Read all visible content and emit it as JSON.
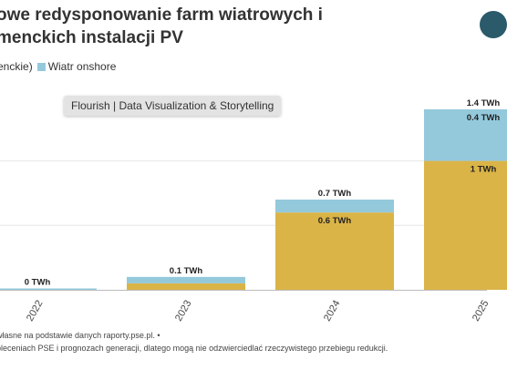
{
  "title": {
    "line1": "owe redysponowanie farm wiatrowych i",
    "line2": "menckich instalacji PV"
  },
  "legend": {
    "items": [
      {
        "label": "enckie)",
        "color": "#dbb447"
      },
      {
        "label": "Wiatr onshore",
        "color": "#94c9dc"
      }
    ]
  },
  "watermark": "Flourish | Data Visualization & Storytelling",
  "footer": {
    "line1": "własne na podstawie danych raporty.pse.pl. •",
    "line2": "bleceniach PSE i prognozach generacji, dlatego mogą nie odzwierciedlać rzeczywistego przebiegu redukcji."
  },
  "colors": {
    "pv": "#dbb447",
    "wind": "#94c9dc",
    "grid": "#e6e6e6",
    "axis": "#bbbbbb"
  },
  "chart_data": {
    "type": "bar",
    "stacked": true,
    "categories": [
      "2022",
      "2023",
      "2024",
      "2025"
    ],
    "series": [
      {
        "values": [
          0,
          0.05,
          0.6,
          1.0
        ]
      },
      {
        "name": "Wiatr onshore",
        "values": [
          0,
          0.05,
          0.1,
          0.4
        ]
      }
    ],
    "totals": [
      "0 TWh",
      "0.1 TWh",
      "0.7 TWh",
      "1.4 TWh"
    ],
    "segment_labels": [
      [
        "",
        "",
        "0.6 TWh",
        "1 TWh"
      ],
      [
        "",
        "",
        "",
        "0.4 TWh"
      ]
    ],
    "ylim": [
      0,
      1.4
    ],
    "grid": true
  }
}
